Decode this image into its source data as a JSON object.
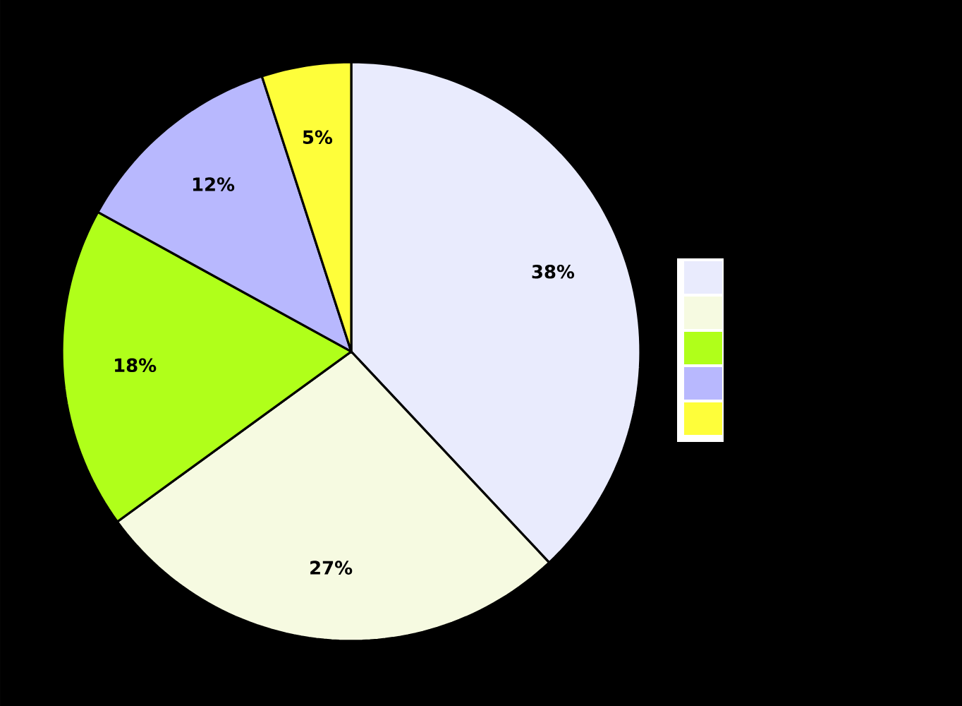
{
  "chart_data": {
    "type": "pie",
    "categories": [
      null,
      null,
      null,
      null,
      null
    ],
    "values": [
      38,
      27,
      18,
      12,
      5
    ],
    "colors": [
      "#e9ebfd",
      "#f6fae1",
      "#b0ff1a",
      "#b8b8fe",
      "#fefe3a"
    ],
    "value_labels": [
      "38%",
      "27%",
      "18%",
      "12%",
      "5%"
    ]
  }
}
